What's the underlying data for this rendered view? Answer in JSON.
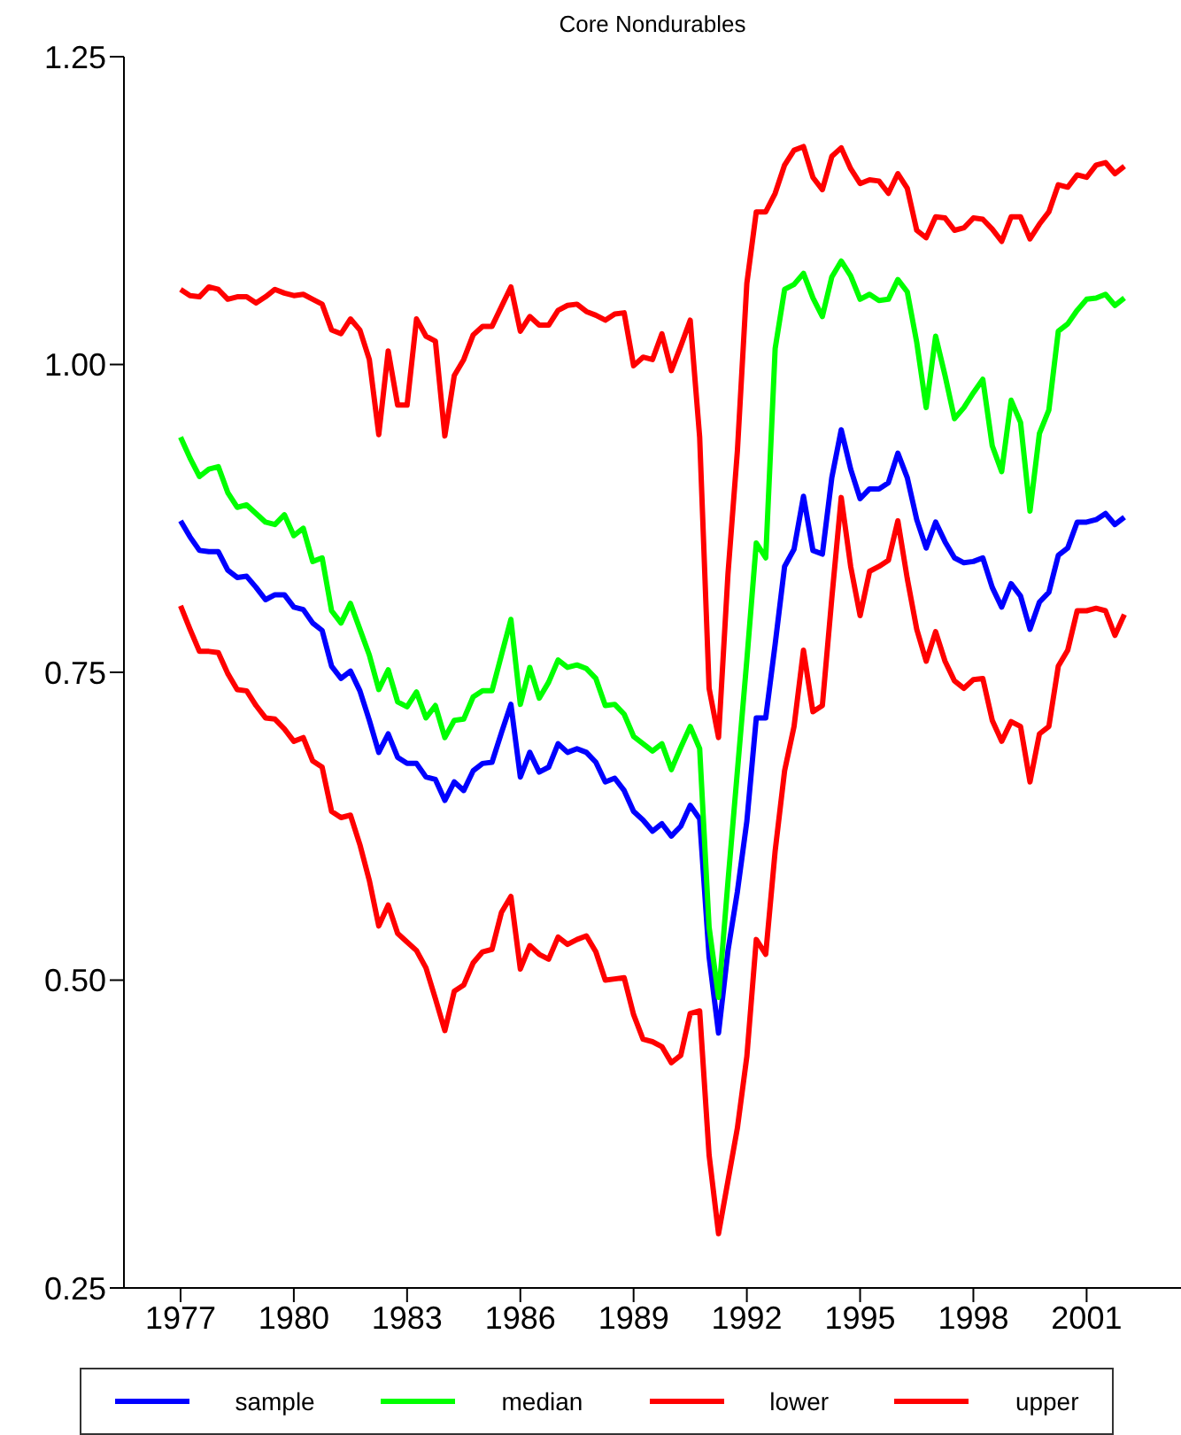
{
  "chart_data": {
    "type": "line",
    "title": "Core Nondurables",
    "x": [
      1977,
      1977.25,
      1977.5,
      1977.75,
      1978,
      1978.25,
      1978.5,
      1978.75,
      1979,
      1979.25,
      1979.5,
      1979.75,
      1980,
      1980.25,
      1980.5,
      1980.75,
      1981,
      1981.25,
      1981.5,
      1981.75,
      1982,
      1982.25,
      1982.5,
      1982.75,
      1983,
      1983.25,
      1983.5,
      1983.75,
      1984,
      1984.25,
      1984.5,
      1984.75,
      1985,
      1985.25,
      1985.5,
      1985.75,
      1986,
      1986.25,
      1986.5,
      1986.75,
      1987,
      1987.25,
      1987.5,
      1987.75,
      1988,
      1988.25,
      1988.5,
      1988.75,
      1989,
      1989.25,
      1989.5,
      1989.75,
      1990,
      1990.25,
      1990.5,
      1990.75,
      1991,
      1991.25,
      1991.5,
      1991.75,
      1992,
      1992.25,
      1992.5,
      1992.75,
      1993,
      1993.25,
      1993.5,
      1993.75,
      1994,
      1994.25,
      1994.5,
      1994.75,
      1995,
      1995.25,
      1995.5,
      1995.75,
      1996,
      1996.25,
      1996.5,
      1996.75,
      1997,
      1997.25,
      1997.5,
      1997.75,
      1998,
      1998.25,
      1998.5,
      1998.75,
      1999,
      1999.25,
      1999.5,
      1999.75,
      2000,
      2000.25,
      2000.5,
      2000.75,
      2001,
      2001.25,
      2001.5,
      2001.75,
      2002
    ],
    "series": [
      {
        "name": "sample",
        "color": "#0000ff",
        "values": [
          0.873,
          0.86,
          0.849,
          0.848,
          0.848,
          0.833,
          0.827,
          0.828,
          0.819,
          0.809,
          0.813,
          0.813,
          0.803,
          0.801,
          0.79,
          0.784,
          0.755,
          0.745,
          0.751,
          0.735,
          0.711,
          0.685,
          0.7,
          0.681,
          0.676,
          0.676,
          0.665,
          0.663,
          0.646,
          0.661,
          0.654,
          0.67,
          0.676,
          0.677,
          0.701,
          0.724,
          0.665,
          0.685,
          0.669,
          0.673,
          0.692,
          0.685,
          0.688,
          0.685,
          0.677,
          0.661,
          0.664,
          0.654,
          0.637,
          0.63,
          0.621,
          0.627,
          0.617,
          0.625,
          0.642,
          0.631,
          0.519,
          0.457,
          0.524,
          0.572,
          0.629,
          0.713,
          0.713,
          0.773,
          0.836,
          0.85,
          0.893,
          0.849,
          0.846,
          0.908,
          0.947,
          0.915,
          0.891,
          0.899,
          0.899,
          0.904,
          0.928,
          0.908,
          0.874,
          0.851,
          0.872,
          0.856,
          0.843,
          0.839,
          0.84,
          0.843,
          0.819,
          0.803,
          0.822,
          0.812,
          0.785,
          0.807,
          0.815,
          0.845,
          0.851,
          0.872,
          0.872,
          0.874,
          0.879,
          0.87,
          0.876
        ]
      },
      {
        "name": "median",
        "color": "#00ff00",
        "values": [
          0.941,
          0.924,
          0.909,
          0.915,
          0.917,
          0.896,
          0.884,
          0.886,
          0.879,
          0.872,
          0.87,
          0.878,
          0.861,
          0.867,
          0.84,
          0.843,
          0.8,
          0.79,
          0.806,
          0.785,
          0.764,
          0.736,
          0.752,
          0.726,
          0.722,
          0.734,
          0.713,
          0.723,
          0.697,
          0.711,
          0.712,
          0.73,
          0.735,
          0.735,
          0.764,
          0.793,
          0.724,
          0.754,
          0.729,
          0.742,
          0.76,
          0.754,
          0.756,
          0.753,
          0.745,
          0.723,
          0.724,
          0.716,
          0.698,
          0.692,
          0.686,
          0.692,
          0.671,
          0.689,
          0.706,
          0.688,
          0.543,
          0.486,
          0.58,
          0.67,
          0.76,
          0.855,
          0.843,
          1.013,
          1.061,
          1.065,
          1.074,
          1.054,
          1.039,
          1.071,
          1.084,
          1.072,
          1.053,
          1.057,
          1.052,
          1.053,
          1.069,
          1.059,
          1.018,
          0.965,
          1.023,
          0.991,
          0.956,
          0.965,
          0.977,
          0.988,
          0.934,
          0.913,
          0.971,
          0.953,
          0.881,
          0.944,
          0.963,
          1.027,
          1.033,
          1.044,
          1.053,
          1.054,
          1.057,
          1.048,
          1.054
        ]
      },
      {
        "name": "lower",
        "color": "#ff0000",
        "values": [
          0.804,
          0.785,
          0.767,
          0.767,
          0.766,
          0.749,
          0.736,
          0.735,
          0.723,
          0.713,
          0.712,
          0.704,
          0.694,
          0.697,
          0.678,
          0.673,
          0.637,
          0.632,
          0.634,
          0.61,
          0.581,
          0.544,
          0.561,
          0.538,
          0.531,
          0.524,
          0.51,
          0.485,
          0.459,
          0.491,
          0.496,
          0.514,
          0.523,
          0.525,
          0.555,
          0.568,
          0.509,
          0.528,
          0.521,
          0.517,
          0.535,
          0.529,
          0.533,
          0.536,
          0.523,
          0.5,
          0.501,
          0.502,
          0.472,
          0.452,
          0.45,
          0.446,
          0.433,
          0.439,
          0.473,
          0.475,
          0.358,
          0.294,
          0.337,
          0.38,
          0.438,
          0.533,
          0.521,
          0.605,
          0.67,
          0.706,
          0.768,
          0.718,
          0.723,
          0.81,
          0.892,
          0.836,
          0.796,
          0.832,
          0.836,
          0.841,
          0.873,
          0.826,
          0.785,
          0.759,
          0.783,
          0.759,
          0.743,
          0.737,
          0.744,
          0.745,
          0.711,
          0.694,
          0.71,
          0.706,
          0.661,
          0.7,
          0.706,
          0.755,
          0.768,
          0.8,
          0.8,
          0.802,
          0.8,
          0.78,
          0.797
        ]
      },
      {
        "name": "upper",
        "color": "#ff0000",
        "values": [
          1.061,
          1.056,
          1.055,
          1.063,
          1.061,
          1.053,
          1.055,
          1.055,
          1.05,
          1.055,
          1.061,
          1.058,
          1.056,
          1.057,
          1.053,
          1.049,
          1.028,
          1.025,
          1.037,
          1.028,
          1.004,
          0.943,
          1.011,
          0.967,
          0.967,
          1.037,
          1.023,
          1.019,
          0.942,
          0.991,
          1.004,
          1.024,
          1.031,
          1.031,
          1.047,
          1.063,
          1.027,
          1.039,
          1.032,
          1.032,
          1.044,
          1.048,
          1.049,
          1.043,
          1.04,
          1.036,
          1.041,
          1.042,
          0.999,
          1.006,
          1.004,
          1.025,
          0.995,
          1.015,
          1.036,
          0.941,
          0.737,
          0.697,
          0.83,
          0.93,
          1.066,
          1.124,
          1.124,
          1.139,
          1.162,
          1.174,
          1.177,
          1.152,
          1.142,
          1.169,
          1.176,
          1.159,
          1.147,
          1.15,
          1.149,
          1.139,
          1.155,
          1.143,
          1.109,
          1.103,
          1.12,
          1.119,
          1.109,
          1.111,
          1.119,
          1.118,
          1.11,
          1.1,
          1.12,
          1.12,
          1.102,
          1.114,
          1.124,
          1.146,
          1.144,
          1.154,
          1.152,
          1.162,
          1.164,
          1.155,
          1.161
        ]
      }
    ],
    "xlim": [
      1975.5,
      2003.5
    ],
    "xticks": [
      1977,
      1980,
      1983,
      1986,
      1989,
      1992,
      1995,
      1998,
      2001
    ],
    "ylim": [
      0.25,
      1.25
    ],
    "yticks": [
      {
        "value": 0.25,
        "label": "0.25"
      },
      {
        "value": 0.5,
        "label": "0.50"
      },
      {
        "value": 0.75,
        "label": "0.75"
      },
      {
        "value": 1.0,
        "label": "1.00"
      },
      {
        "value": 1.25,
        "label": "1.25"
      }
    ],
    "grid": false,
    "legend": "bottom",
    "marker": "none",
    "line_style": "solid"
  }
}
